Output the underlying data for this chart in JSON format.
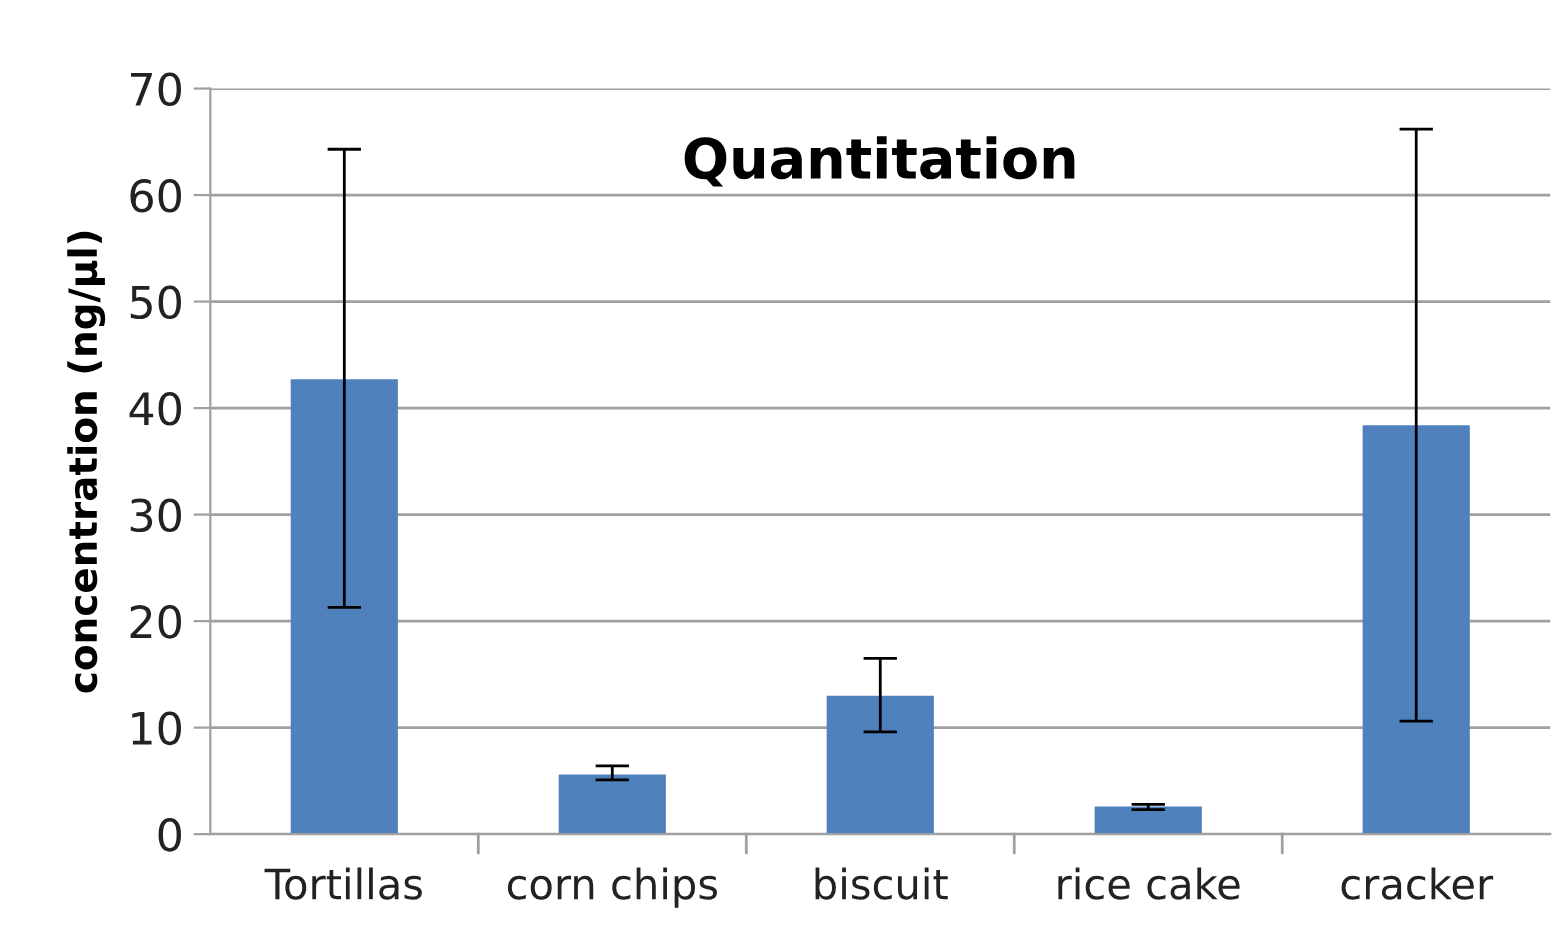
{
  "chart_data": {
    "type": "bar",
    "title": "Quantitation",
    "ylabel": "concentration (ng/µl)",
    "categories": [
      "Tortillas",
      "corn chips",
      "biscuit",
      "rice cake",
      "cracker"
    ],
    "values": [
      42.7,
      5.6,
      13.0,
      2.6,
      38.4
    ],
    "errors": [
      [
        21.3,
        64.3
      ],
      [
        5.1,
        6.4
      ],
      [
        9.6,
        16.5
      ],
      [
        2.3,
        2.8
      ],
      [
        10.6,
        66.2
      ]
    ],
    "color": "#4f81bd",
    "ylim": [
      0,
      70
    ],
    "yticks": [
      0,
      10,
      20,
      30,
      40,
      50,
      60,
      70
    ],
    "grid": "y"
  }
}
